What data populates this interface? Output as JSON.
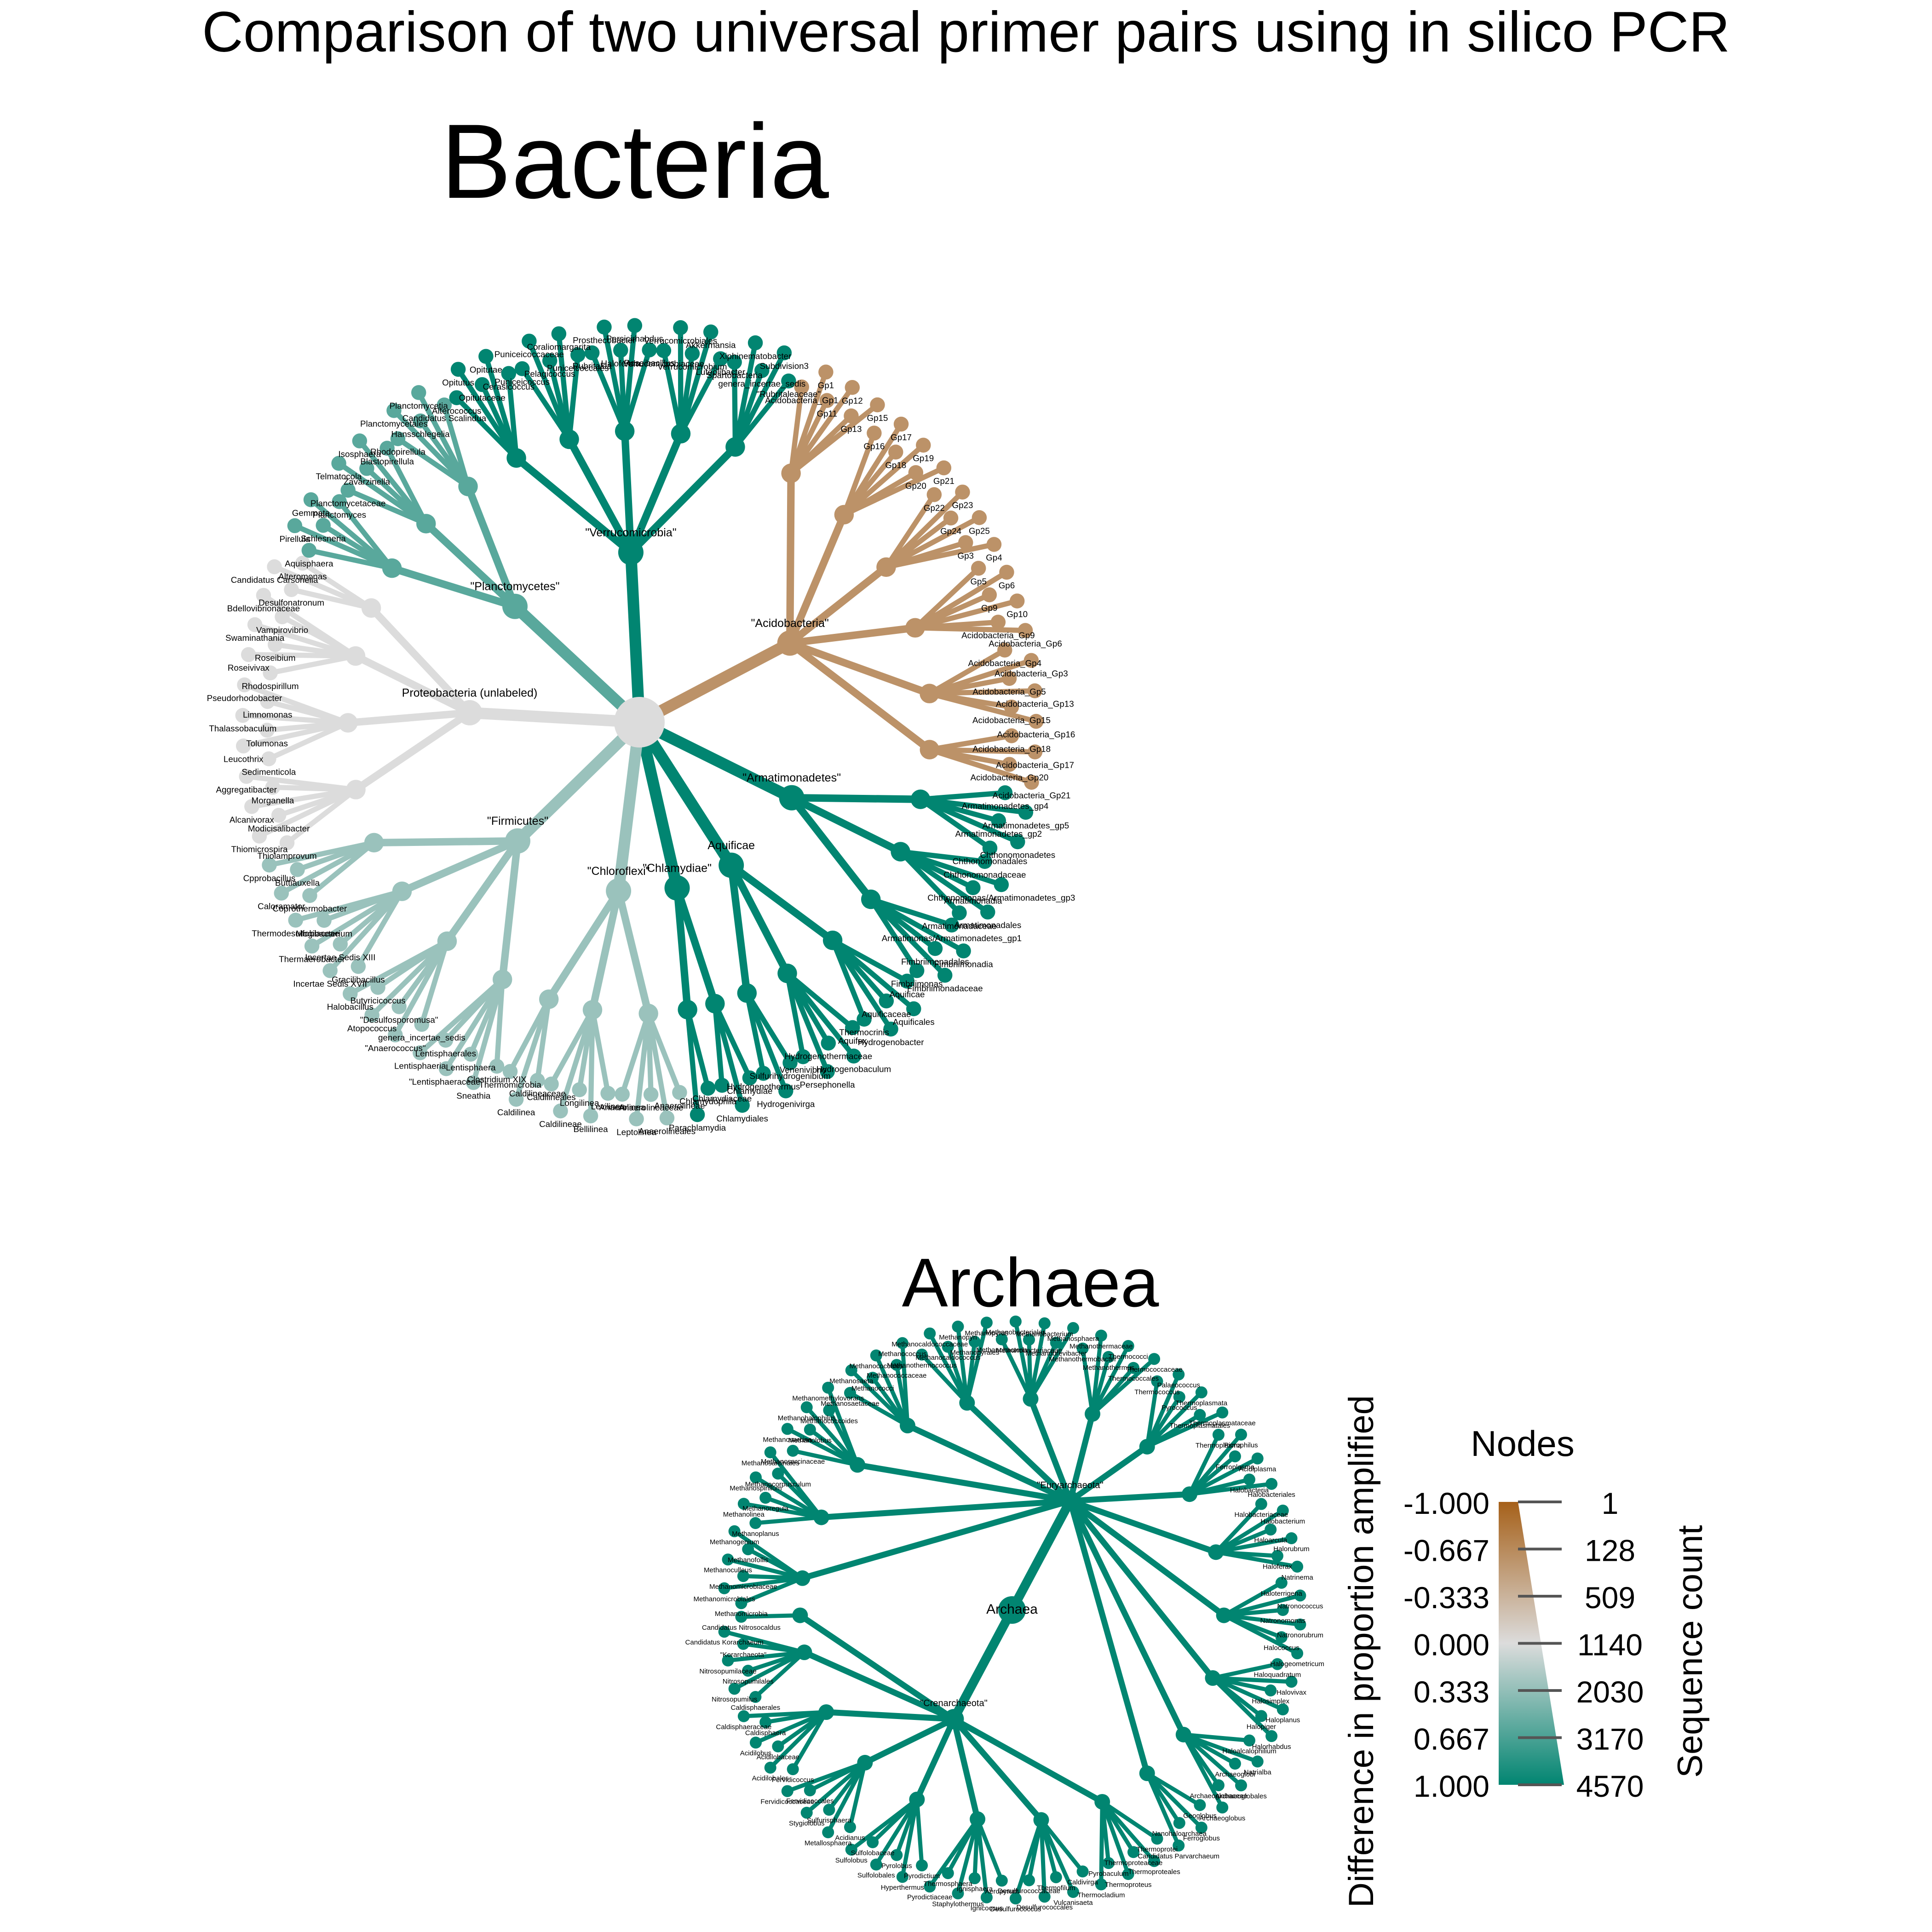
{
  "title": "Comparison of two universal primer pairs using in silico PCR",
  "colors": {
    "negative": "#A6611A",
    "neutral": "#DCDCDC",
    "positive": "#018571"
  },
  "bacteria": {
    "title": "Bacteria",
    "root_label": "",
    "groups": [
      {
        "name": "Proteobacteria (unlabeled)",
        "score": 0.0,
        "taxa": [
          "Thiolamprovum",
          "Thiomicrospira",
          "Modicisalibacter",
          "Alcanivorax",
          "Morganella",
          "Aggregatibacter",
          "Sedimenticola",
          "Leucothrix",
          "Tolumonas",
          "Thalassobaculum",
          "Limnomonas",
          "Pseudorhodobacter",
          "Rhodospirillum",
          "Roseivivax",
          "Roseibium",
          "Swaminathania",
          "Vampirovibrio",
          "Bdellovibrionaceae",
          "Desulfonatronum",
          "Candidatus Carsonella",
          "Alteromonas"
        ]
      },
      {
        "name": "\"Planctomycetes\"",
        "score": 0.6,
        "taxa": [
          "Aquisphaera",
          "Pirellula",
          "Schlesneria",
          "Gemmata",
          "Planctomyces",
          "Planctomycetaceae",
          "Telmatocola",
          "Zavarzinella",
          "Isosphaera",
          "Blastopirellula",
          "Rhodopirellula",
          "Planctomycetales",
          "Hansschlegelia",
          "Planctomycetia",
          "Candidatus Scalindua"
        ]
      },
      {
        "name": "\"Verrucomicrobia\"",
        "score": 1.0,
        "taxa": [
          "Alterococcus",
          "Opitutus",
          "Opitutaceae",
          "Opitutae",
          "Cerasicoccus",
          "Puniceicoccus",
          "Puniceicoccaceae",
          "Pelagicoccus",
          "Coraliomargarita",
          "Puniceicoccales",
          "Rubritalea",
          "Prosthecobacter",
          "Haloferula",
          "Persicirhabdus",
          "Roseibacillus",
          "Verrucomicrobiaceae",
          "Verrucomicrobiales",
          "Verrucomicrobium",
          "Akkermansia",
          "Luteolibacter",
          "Spartobacteria",
          "Xiphinematobacter",
          "genera_incertae_sedis",
          "Subdivision3",
          "\"Rubritaleaceae\""
        ]
      },
      {
        "name": "\"Acidobacteria\"",
        "score": -0.6,
        "taxa": [
          "Acidobacteria_Gp1",
          "Gp1",
          "Gp11",
          "Gp12",
          "Gp13",
          "Gp15",
          "Gp16",
          "Gp17",
          "Gp18",
          "Gp19",
          "Gp20",
          "Gp21",
          "Gp22",
          "Gp23",
          "Gp24",
          "Gp25",
          "Gp3",
          "Gp4",
          "Gp5",
          "Gp6",
          "Gp9",
          "Gp10",
          "Acidobacteria_Gp9",
          "Acidobacteria_Gp6",
          "Acidobacteria_Gp4",
          "Acidobacteria_Gp3",
          "Acidobacteria_Gp5",
          "Acidobacteria_Gp13",
          "Acidobacteria_Gp15",
          "Acidobacteria_Gp16",
          "Acidobacteria_Gp18",
          "Acidobacteria_Gp17",
          "Acidobacteria_Gp20",
          "Acidobacteria_Gp21"
        ]
      },
      {
        "name": "\"Armatimonadetes\"",
        "score": 1.0,
        "taxa": [
          "Armatimonadetes_gp4",
          "Armatimonadetes_gp5",
          "Armatimonadetes_gp2",
          "Chthonomonadetes",
          "Chthonomonadales",
          "Chthonomonadaceae",
          "Chthonomonas/Armatimonadetes_gp3",
          "Armatimonadia",
          "Armatimonadales",
          "Armatimonadaceae",
          "Armatimonas/Armatimonadetes_gp1",
          "Fimbriimonadia",
          "Fimbriimonadales",
          "Fimbriimonadaceae",
          "Fimbriimonas"
        ]
      },
      {
        "name": "Aquificae",
        "score": 1.0,
        "taxa": [
          "Aquificae",
          "Aquificales",
          "Aquificaceae",
          "Hydrogenobacter",
          "Thermocrinis",
          "Aquifex",
          "Hydrogenobaculum",
          "Hydrogenothermaceae",
          "Persephonella",
          "Venenivibrio",
          "Sulfurihydrogenibium",
          "Hydrogenivirga",
          "Hydrogenothermus"
        ]
      },
      {
        "name": "\"Chlamydiae\"",
        "score": 1.0,
        "taxa": [
          "Chlamydiae",
          "Chlamydiales",
          "Chlamydiaceae",
          "Chlamydophila",
          "Parachlamydia"
        ]
      },
      {
        "name": "\"Chloroflexi\"",
        "score": 0.3,
        "taxa": [
          "Anaerolineae",
          "Anaerolineales",
          "Anaerolineaceae",
          "Leptolinea",
          "Anaerolinea",
          "Levilinea",
          "Bellilinea",
          "Longilinea",
          "Caldilineae",
          "Caldilineales",
          "Caldilineaceae",
          "Caldilinea",
          "Thermomicrobia"
        ]
      },
      {
        "name": "\"Firmicutes\"",
        "score": 0.3,
        "taxa": [
          "Clostridium XIX",
          "Sneathia",
          "Lentisphaera",
          "\"Lentisphaeraceae\"",
          "Lentisphaerales",
          "Lentisphaeria",
          "genera_incertae_sedis",
          "\"Anaerococcus\"",
          "\"Desulfosporomusa\"",
          "Atopococcus",
          "Butyricicoccus",
          "Halobacillus",
          "Gracilibacillus",
          "Incertae Sedis XVII",
          "Incertae Sedis XIII",
          "Thermaerobacter",
          "Mogibacterium",
          "Thermodesulfobiaceae",
          "Coprothermobacter",
          "Caloramator",
          "Buttiauxella",
          "Cpprobacillus"
        ]
      }
    ]
  },
  "archaea": {
    "title": "Archaea",
    "root_label": "Archaea",
    "groups": [
      {
        "name": "\"Euryarchaeota\"",
        "score": 1.0,
        "taxa": [
          "Methanomicrobia",
          "Methanomicrobiales",
          "Methanomicrobiaceae",
          "Methanoculleus",
          "Methanofollis",
          "Methanogenium",
          "Methanoplanus",
          "Methanolinea",
          "Methanoregula",
          "Methanospirillum",
          "Methanocorpusculum",
          "Methanosarcinales",
          "Methanosarcinaceae",
          "Methanosarcina",
          "Methanolobus",
          "Methanohalophilus",
          "Methanococcoides",
          "Methanomethylovorans",
          "Methanosaetaceae",
          "Methanosaeta",
          "Methanococci",
          "Methanococcales",
          "Methanococcaceae",
          "Methanococcus",
          "Methanothermococcus",
          "Methanocaldococcaceae",
          "Methanocaldococcus",
          "Methanopyri",
          "Methanopyrales",
          "Methanopyrus",
          "Methanobacteria",
          "Methanobacteriales",
          "Methanobacteriaceae",
          "Methanobacterium",
          "Methanobrevibacter",
          "Methanosphaera",
          "Methanothermobacter",
          "Methanothermaceae",
          "Methanothermus",
          "Thermococci",
          "Thermococcales",
          "Thermococcaceae",
          "Thermococcus",
          "Palaeococcus",
          "Pyrococcus",
          "Thermoplasmata",
          "Thermoplasmatales",
          "Thermoplasmataceae",
          "Thermoplasma",
          "Picrophilus",
          "Ferroplasma",
          "Acidiplasma",
          "Halobacteria",
          "Halobacteriales",
          "Halobacteriaceae",
          "Halobacterium",
          "Haloarcula",
          "Halorubrum",
          "Haloferax",
          "Natrinema",
          "Haloterrigena",
          "Natronococcus",
          "Natronomonas",
          "Natronorubrum",
          "Halococcus",
          "Halogeometricum",
          "Haloquadratum",
          "Halovivax",
          "Halosimplex",
          "Haloplanus",
          "Halopiger",
          "Halorhabdus",
          "Haloalcalophilium",
          "Natrialba",
          "Archaeoglobi",
          "Archaeoglobales",
          "Archaeoglobaceae",
          "Archaeoglobus",
          "Geoglobus",
          "Ferroglobus",
          "Nanohaloarchaea",
          "Candidatus Parvarchaeum"
        ]
      },
      {
        "name": "\"Crenarchaeota\"",
        "score": 1.0,
        "taxa": [
          "Thermoprotei",
          "Thermoproteales",
          "Thermoproteaceae",
          "Thermoproteus",
          "Pyrobaculum",
          "Thermocladium",
          "Caldivirga",
          "Vulcanisaeta",
          "Thermofilum",
          "Desulfurococcales",
          "Desulfurococcaceae",
          "Desulfurococcus",
          "Aeropyrum",
          "Ignicoccus",
          "Ignisphaera",
          "Staphylothermus",
          "Thermosphaera",
          "Pyrodictiaceae",
          "Pyrodictium",
          "Hyperthermus",
          "Pyrolobus",
          "Sulfolobales",
          "Sulfolobaceae",
          "Sulfolobus",
          "Acidianus",
          "Metallosphaera",
          "Sulfurisphaera",
          "Stygiolobus",
          "Fervidicoccales",
          "Fervidicoccaceae",
          "Fervidicoccus",
          "Acidilobales",
          "Acidilobaceae",
          "Acidilobus",
          "Caldisphaera",
          "Caldisphaeraceae",
          "Caldisphaerales",
          "Nitrosopumilus",
          "Nitrosopumilales",
          "Nitrosopumilaceae",
          "\"Korarchaeota\"",
          "Candidatus Korarchaeum",
          "Candidatus Nitrosocaldus"
        ]
      }
    ]
  },
  "legend": {
    "color_title": "Difference in proportion amplified",
    "color_ticks": [
      "-1.000",
      "-0.667",
      "-0.333",
      "0.000",
      "0.333",
      "0.667",
      "1.000"
    ],
    "size_title": "Nodes",
    "size_axis_title": "Sequence count",
    "size_ticks": [
      "1",
      "128",
      "509",
      "1140",
      "2030",
      "3170",
      "4570"
    ]
  }
}
